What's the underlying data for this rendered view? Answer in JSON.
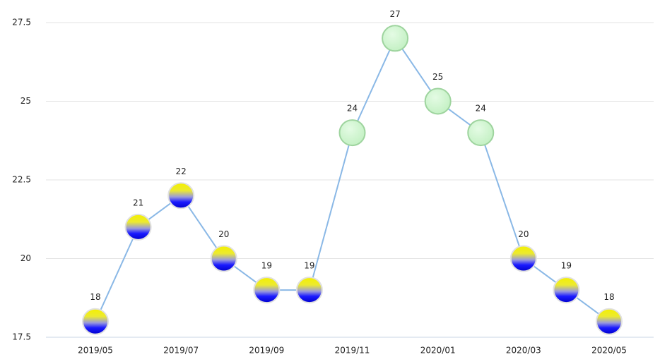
{
  "chart_data": {
    "type": "line",
    "categories": [
      "2019/05",
      null,
      "2019/07",
      null,
      "2019/09",
      null,
      "2019/11",
      null,
      "2020/01",
      null,
      "2020/03",
      null,
      "2020/05"
    ],
    "values": [
      18,
      21,
      22,
      20,
      19,
      19,
      24,
      27,
      25,
      24,
      20,
      19,
      18
    ],
    "color": "#8ab8e6",
    "point_styles": [
      "gold-blue",
      "gold-blue",
      "gold-blue",
      "gold-blue",
      "gold-blue",
      "gold-blue",
      "green",
      "green",
      "green",
      "green",
      "gold-blue",
      "gold-blue",
      "gold-blue"
    ],
    "ylim": [
      17.5,
      27.5
    ],
    "yticks": [
      17.5,
      20,
      22.5,
      25,
      27.5
    ],
    "grid": true
  }
}
